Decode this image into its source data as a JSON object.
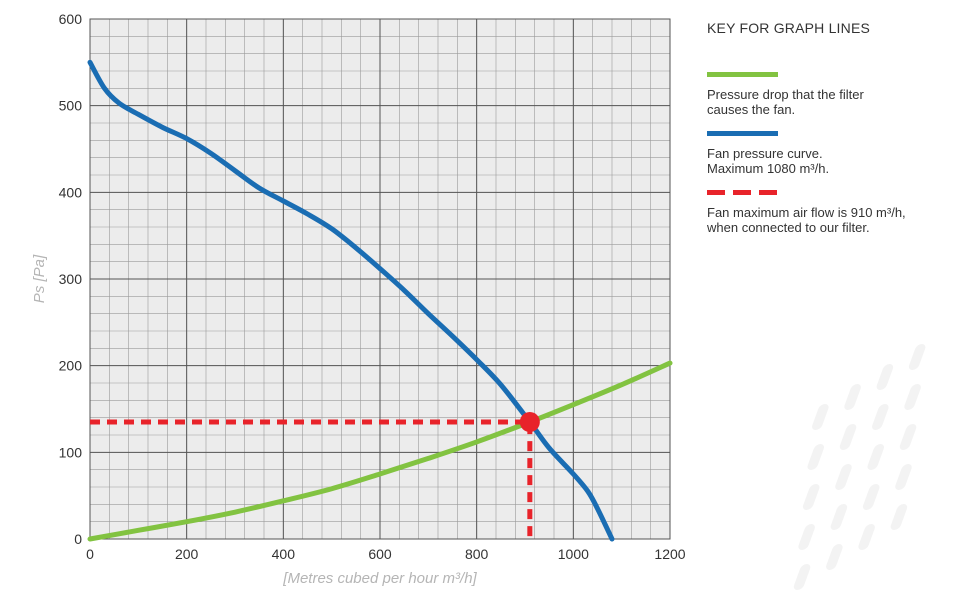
{
  "chart_data": {
    "type": "line",
    "title": "",
    "xlabel": "[Metres cubed per hour m³/h]",
    "ylabel": "Ps [Pa]",
    "xlim": [
      0,
      1200
    ],
    "ylim": [
      0,
      600
    ],
    "x_ticks": [
      0,
      200,
      400,
      600,
      800,
      1000,
      1200
    ],
    "y_ticks": [
      0,
      100,
      200,
      300,
      400,
      500,
      600
    ],
    "grid": true,
    "legend_position": "right",
    "series": [
      {
        "key": "filter",
        "color": "#82c341",
        "style": "solid",
        "points": [
          [
            0,
            0
          ],
          [
            100,
            10
          ],
          [
            200,
            20
          ],
          [
            300,
            31
          ],
          [
            400,
            44
          ],
          [
            500,
            58
          ],
          [
            600,
            75
          ],
          [
            700,
            93
          ],
          [
            800,
            112
          ],
          [
            910,
            135
          ],
          [
            1000,
            155
          ],
          [
            1100,
            178
          ],
          [
            1200,
            203
          ]
        ]
      },
      {
        "key": "fan",
        "color": "#1a6db3",
        "style": "solid",
        "points": [
          [
            0,
            550
          ],
          [
            30,
            520
          ],
          [
            60,
            503
          ],
          [
            100,
            490
          ],
          [
            150,
            475
          ],
          [
            200,
            462
          ],
          [
            250,
            445
          ],
          [
            300,
            425
          ],
          [
            350,
            405
          ],
          [
            400,
            390
          ],
          [
            450,
            375
          ],
          [
            500,
            358
          ],
          [
            550,
            336
          ],
          [
            600,
            312
          ],
          [
            650,
            287
          ],
          [
            700,
            260
          ],
          [
            750,
            234
          ],
          [
            800,
            207
          ],
          [
            850,
            178
          ],
          [
            910,
            135
          ],
          [
            950,
            105
          ],
          [
            1000,
            75
          ],
          [
            1030,
            55
          ],
          [
            1050,
            35
          ],
          [
            1080,
            0
          ]
        ]
      },
      {
        "key": "operating",
        "color": "#e8232a",
        "style": "dashed",
        "points": [
          [
            0,
            135
          ],
          [
            910,
            135
          ],
          [
            910,
            0
          ]
        ]
      }
    ],
    "intersection": {
      "x": 910,
      "y": 135,
      "color": "#e8232a"
    }
  },
  "legend": {
    "title": "KEY FOR GRAPH LINES",
    "entries": [
      {
        "text1": "Pressure drop that the filter",
        "text2": "causes the fan.",
        "color": "#82c341"
      },
      {
        "text1": "Fan pressure curve.",
        "text2": "Maximum 1080 m³/h.",
        "color": "#1a6db3"
      },
      {
        "text1": "Fan maximum air flow is 910 m³/h,",
        "text2": "when connected to our filter.",
        "color": "#e8232a"
      }
    ]
  }
}
